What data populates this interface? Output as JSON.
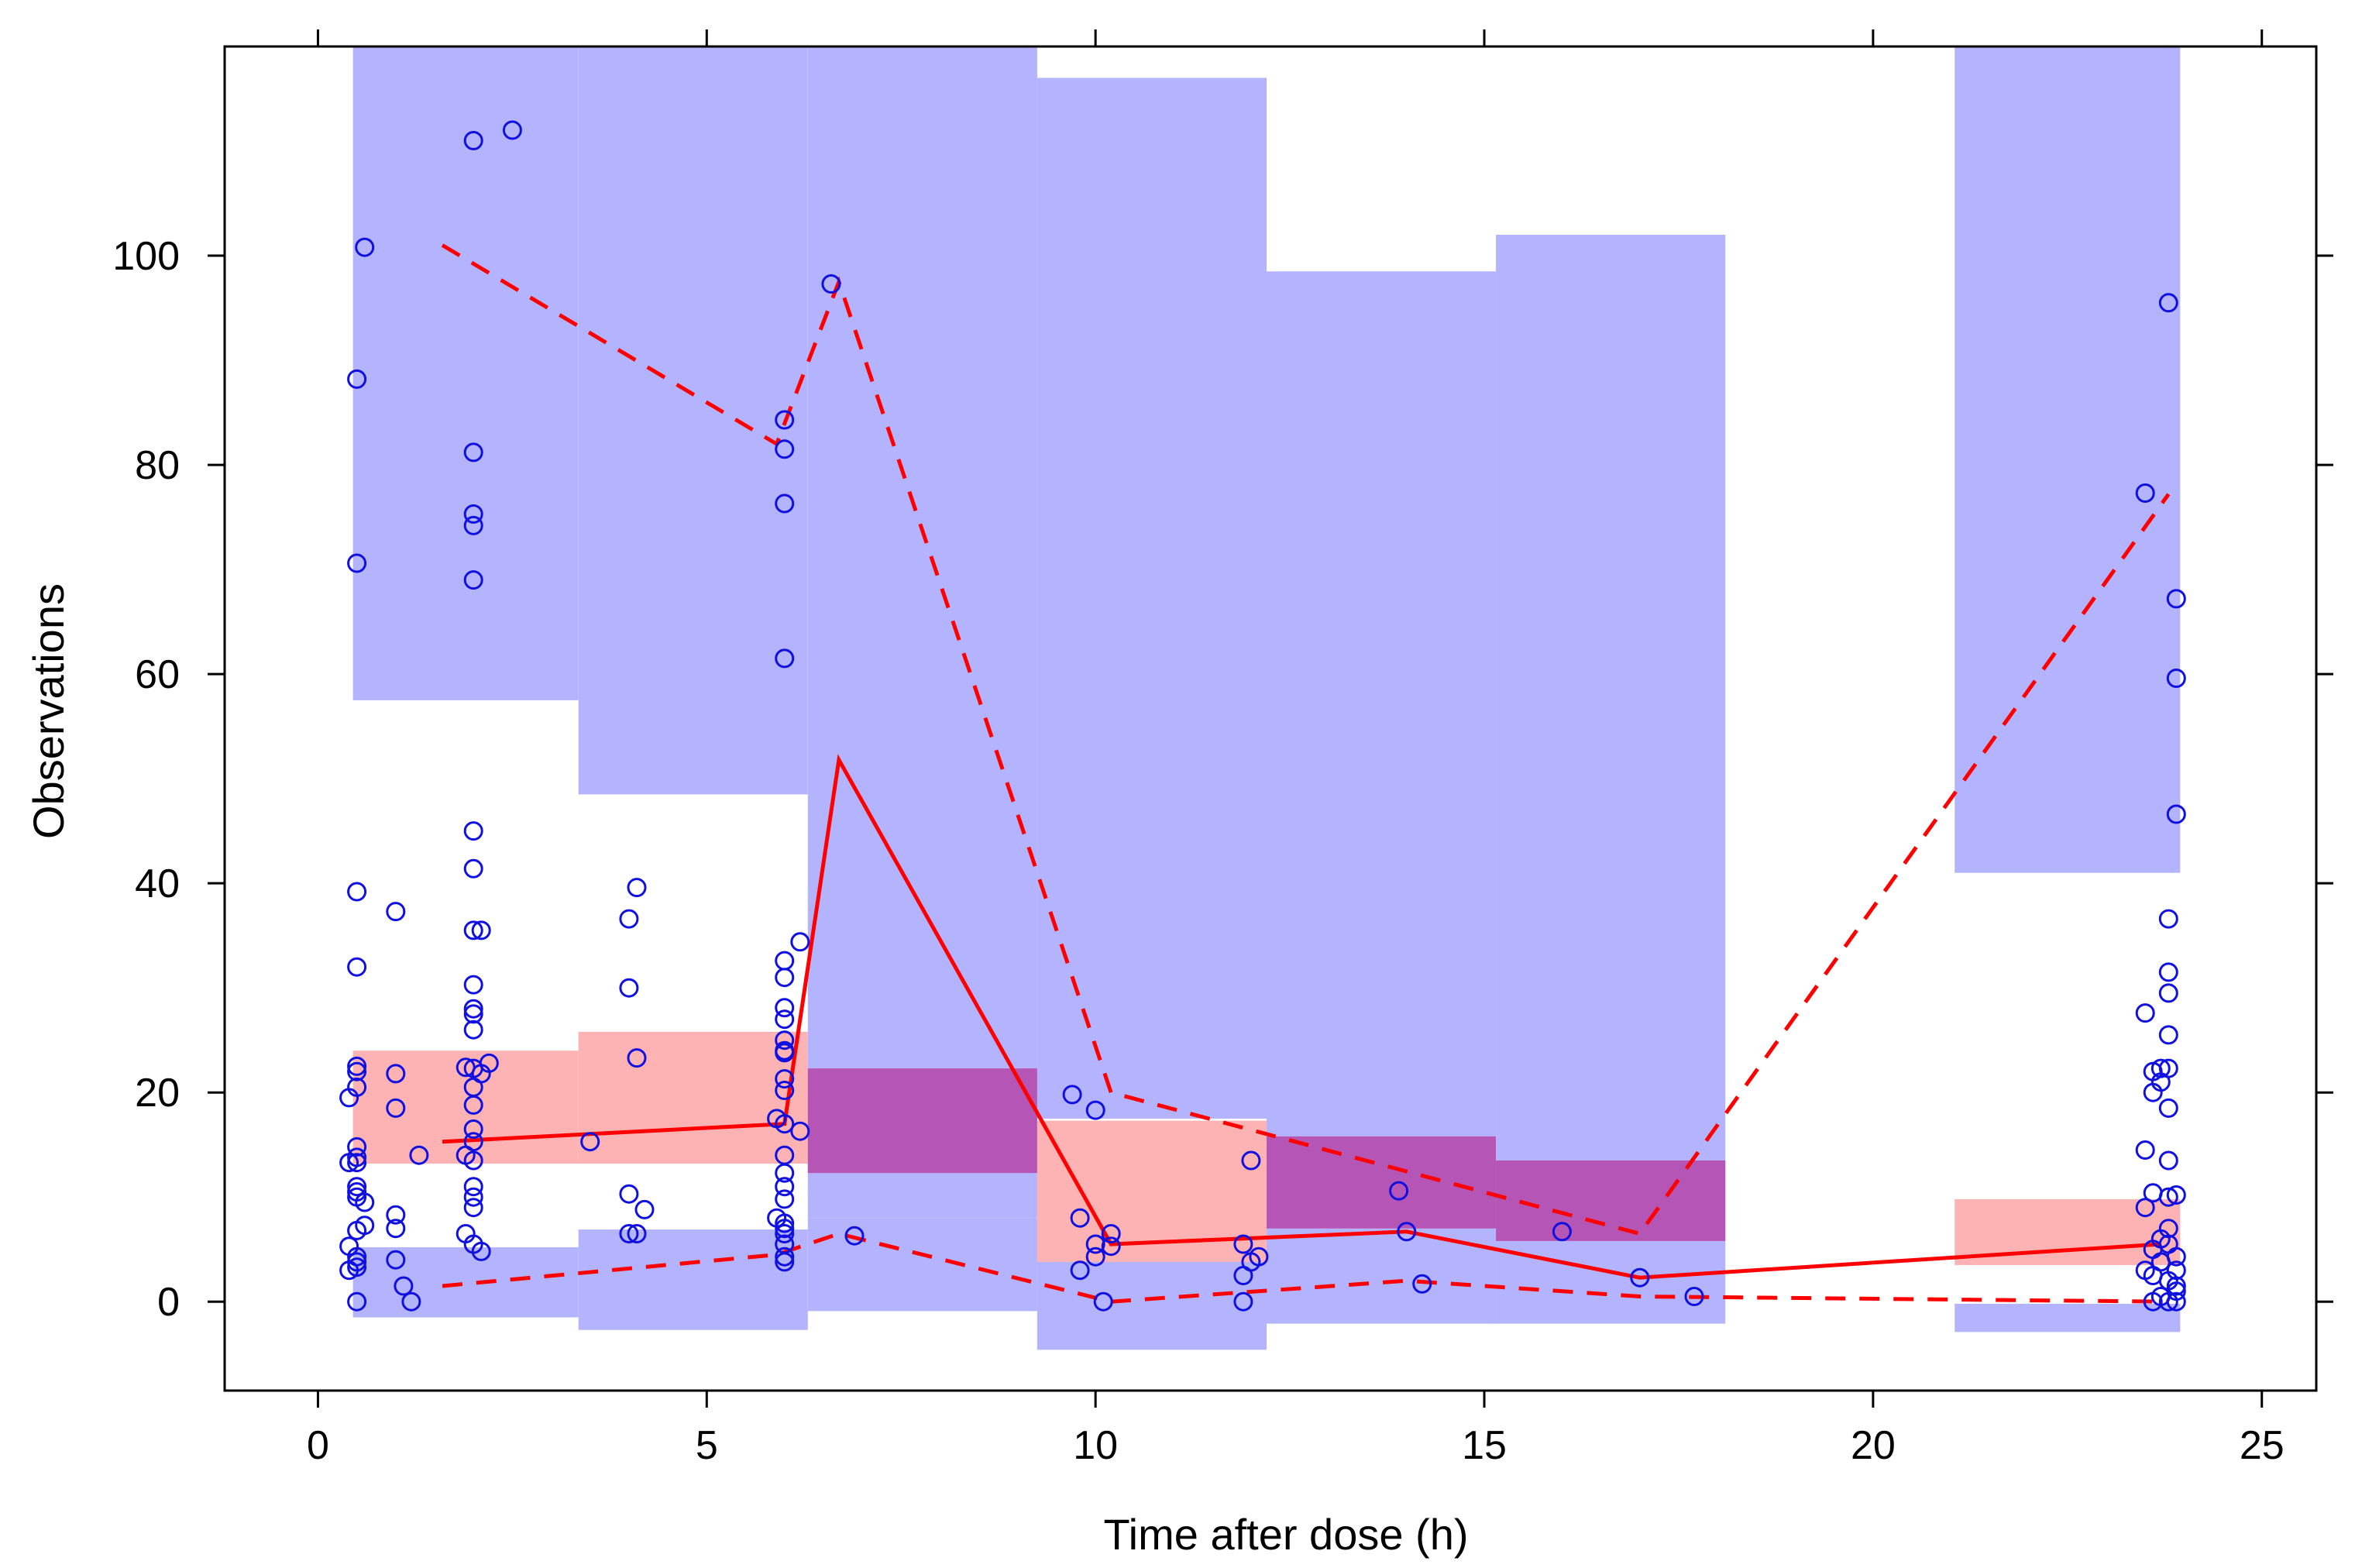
{
  "chart_data": {
    "type": "scatter",
    "title": "",
    "xlabel": "Time after dose (h)",
    "ylabel": "Observations",
    "xlim": [
      -1.2,
      25.7
    ],
    "ylim": [
      -8.5,
      120
    ],
    "xticks": [
      0,
      5,
      10,
      15,
      20,
      25
    ],
    "yticks": [
      0,
      20,
      40,
      60,
      80,
      100
    ],
    "xtick_labels": [
      "0",
      "5",
      "10",
      "15",
      "20",
      "25"
    ],
    "ytick_labels": [
      "0",
      "20",
      "40",
      "60",
      "80",
      "100"
    ],
    "grid": false,
    "legend": "none",
    "colors": {
      "outer_pi": "#b3b3fe",
      "median_pi": "#fdb3b3",
      "overlap": "#e07fb8",
      "overlap_median": "#b555b5",
      "points": "#1010e0",
      "lines": "#ff0000"
    },
    "bins": [
      {
        "x0": 0.45,
        "x1": 3.35,
        "upper_ci": [
          57.5,
          120
        ],
        "median_ci": [
          13.2,
          24.0
        ],
        "lower_ci": [
          -1.5,
          5.2
        ]
      },
      {
        "x0": 3.35,
        "x1": 6.3,
        "upper_ci": [
          48.5,
          120
        ],
        "median_ci": [
          13.2,
          25.8
        ],
        "lower_ci": [
          -2.7,
          6.9
        ]
      },
      {
        "x0": 6.3,
        "x1": 9.25,
        "upper_ci": [
          8.0,
          120
        ],
        "median_ci": [
          12.3,
          22.3
        ],
        "lower_ci": [
          -0.9,
          8.0
        ]
      },
      {
        "x0": 9.25,
        "x1": 12.2,
        "upper_ci": [
          17.5,
          117
        ],
        "median_ci": [
          3.8,
          17.3
        ],
        "lower_ci": [
          -4.6,
          4.0
        ]
      },
      {
        "x0": 12.2,
        "x1": 15.15,
        "upper_ci": [
          1.5,
          98.5
        ],
        "median_ci": [
          7.0,
          15.8
        ],
        "lower_ci": [
          -2.1,
          1.5
        ]
      },
      {
        "x0": 15.15,
        "x1": 18.1,
        "upper_ci": [
          0.5,
          102
        ],
        "median_ci": [
          5.8,
          13.5
        ],
        "lower_ci": [
          -2.1,
          0.5
        ]
      },
      {
        "x0": 21.05,
        "x1": 23.95,
        "upper_ci": [
          41.0,
          120
        ],
        "median_ci": [
          3.5,
          9.8
        ],
        "lower_ci": [
          -2.9,
          -0.2
        ]
      }
    ],
    "series": [
      {
        "name": "Observed median",
        "style": "solid",
        "x": [
          1.6,
          6.0,
          6.7,
          10.2,
          14.0,
          17.0,
          23.7
        ],
        "y": [
          15.3,
          17.0,
          51.8,
          5.5,
          6.7,
          2.3,
          5.5
        ]
      },
      {
        "name": "Observed 95th percentile",
        "style": "dashed",
        "x": [
          1.6,
          5.9,
          6.7,
          10.2,
          17.0,
          23.8
        ],
        "y": [
          101.0,
          82.0,
          97.5,
          20.0,
          6.5,
          77.2
        ]
      },
      {
        "name": "Observed 5th percentile",
        "style": "dashed",
        "x": [
          1.6,
          5.9,
          6.7,
          10.2,
          14.0,
          17.0,
          23.8
        ],
        "y": [
          1.5,
          4.5,
          6.5,
          0.0,
          2.0,
          0.5,
          0.0
        ]
      }
    ],
    "points": [
      [
        0.5,
        88.2
      ],
      [
        0.5,
        70.6
      ],
      [
        0.6,
        100.8
      ],
      [
        0.5,
        39.2
      ],
      [
        0.5,
        32.0
      ],
      [
        0.5,
        22.5
      ],
      [
        0.5,
        22.0
      ],
      [
        0.4,
        19.5
      ],
      [
        0.5,
        20.5
      ],
      [
        0.5,
        14.8
      ],
      [
        0.5,
        13.8
      ],
      [
        0.4,
        13.3
      ],
      [
        0.5,
        13.3
      ],
      [
        0.5,
        11.0
      ],
      [
        0.5,
        10.5
      ],
      [
        0.5,
        10.0
      ],
      [
        0.6,
        9.5
      ],
      [
        0.5,
        6.8
      ],
      [
        0.6,
        7.3
      ],
      [
        0.4,
        5.3
      ],
      [
        0.5,
        4.3
      ],
      [
        0.5,
        3.8
      ],
      [
        0.4,
        3.0
      ],
      [
        0.5,
        3.3
      ],
      [
        0.5,
        0.0
      ],
      [
        1.0,
        37.3
      ],
      [
        1.0,
        21.8
      ],
      [
        1.0,
        18.5
      ],
      [
        1.0,
        8.3
      ],
      [
        1.0,
        7.0
      ],
      [
        1.0,
        4.0
      ],
      [
        1.1,
        1.5
      ],
      [
        1.2,
        0.0
      ],
      [
        1.3,
        14.0
      ],
      [
        2.0,
        111.0
      ],
      [
        2.0,
        81.2
      ],
      [
        2.0,
        75.3
      ],
      [
        2.0,
        74.2
      ],
      [
        2.0,
        69.0
      ],
      [
        2.0,
        45.0
      ],
      [
        2.0,
        41.4
      ],
      [
        2.1,
        35.5
      ],
      [
        2.0,
        35.5
      ],
      [
        2.0,
        30.3
      ],
      [
        2.0,
        28.0
      ],
      [
        2.0,
        27.5
      ],
      [
        2.0,
        26.0
      ],
      [
        1.9,
        22.4
      ],
      [
        2.0,
        22.3
      ],
      [
        2.1,
        21.8
      ],
      [
        2.0,
        20.5
      ],
      [
        2.2,
        22.8
      ],
      [
        2.0,
        18.8
      ],
      [
        2.0,
        16.5
      ],
      [
        2.0,
        15.3
      ],
      [
        1.9,
        14.0
      ],
      [
        2.0,
        13.5
      ],
      [
        2.0,
        11.0
      ],
      [
        2.0,
        10.0
      ],
      [
        2.0,
        9.0
      ],
      [
        1.9,
        6.5
      ],
      [
        2.0,
        5.5
      ],
      [
        2.1,
        4.8
      ],
      [
        2.5,
        112.0
      ],
      [
        3.5,
        15.3
      ],
      [
        4.0,
        36.6
      ],
      [
        4.0,
        30.0
      ],
      [
        4.1,
        39.6
      ],
      [
        4.1,
        23.3
      ],
      [
        4.0,
        10.3
      ],
      [
        4.0,
        6.5
      ],
      [
        4.1,
        6.5
      ],
      [
        4.2,
        8.8
      ],
      [
        6.0,
        84.3
      ],
      [
        6.0,
        81.5
      ],
      [
        6.0,
        76.3
      ],
      [
        6.0,
        61.5
      ],
      [
        6.2,
        34.4
      ],
      [
        6.0,
        32.6
      ],
      [
        6.0,
        31.0
      ],
      [
        6.0,
        28.1
      ],
      [
        6.0,
        27.0
      ],
      [
        6.0,
        25.0
      ],
      [
        6.0,
        24.0
      ],
      [
        6.0,
        23.8
      ],
      [
        6.0,
        21.3
      ],
      [
        6.0,
        20.2
      ],
      [
        5.9,
        17.5
      ],
      [
        6.0,
        17.0
      ],
      [
        6.2,
        16.3
      ],
      [
        6.0,
        14.0
      ],
      [
        6.0,
        12.3
      ],
      [
        6.0,
        11.0
      ],
      [
        6.0,
        9.8
      ],
      [
        5.9,
        8.0
      ],
      [
        6.0,
        7.5
      ],
      [
        6.0,
        7.0
      ],
      [
        6.0,
        6.5
      ],
      [
        6.0,
        5.5
      ],
      [
        6.0,
        4.3
      ],
      [
        6.0,
        3.8
      ],
      [
        6.6,
        97.3
      ],
      [
        6.9,
        6.3
      ],
      [
        9.7,
        19.8
      ],
      [
        9.8,
        8.0
      ],
      [
        9.8,
        3.0
      ],
      [
        10.0,
        18.3
      ],
      [
        10.0,
        5.5
      ],
      [
        10.0,
        4.3
      ],
      [
        10.1,
        0.0
      ],
      [
        10.2,
        6.5
      ],
      [
        10.2,
        5.3
      ],
      [
        11.9,
        5.5
      ],
      [
        11.9,
        2.5
      ],
      [
        11.9,
        0.0
      ],
      [
        12.0,
        3.8
      ],
      [
        12.1,
        4.3
      ],
      [
        12.0,
        13.5
      ],
      [
        13.9,
        10.6
      ],
      [
        14.0,
        6.7
      ],
      [
        14.2,
        1.7
      ],
      [
        16.0,
        6.7
      ],
      [
        17.0,
        2.3
      ],
      [
        17.7,
        0.5
      ],
      [
        23.5,
        77.3
      ],
      [
        23.8,
        95.5
      ],
      [
        23.9,
        67.2
      ],
      [
        23.9,
        59.6
      ],
      [
        23.9,
        46.6
      ],
      [
        23.8,
        36.6
      ],
      [
        23.8,
        31.5
      ],
      [
        23.8,
        29.5
      ],
      [
        23.5,
        27.6
      ],
      [
        23.8,
        25.5
      ],
      [
        23.7,
        22.3
      ],
      [
        23.6,
        22.0
      ],
      [
        23.8,
        22.3
      ],
      [
        23.7,
        21.0
      ],
      [
        23.6,
        20.0
      ],
      [
        23.8,
        18.5
      ],
      [
        23.5,
        14.5
      ],
      [
        23.8,
        13.5
      ],
      [
        23.6,
        10.4
      ],
      [
        23.8,
        10.0
      ],
      [
        23.9,
        10.2
      ],
      [
        23.5,
        9.0
      ],
      [
        23.8,
        7.0
      ],
      [
        23.7,
        6.0
      ],
      [
        23.8,
        5.5
      ],
      [
        23.6,
        5.0
      ],
      [
        23.9,
        4.3
      ],
      [
        23.7,
        3.8
      ],
      [
        23.9,
        3.0
      ],
      [
        23.5,
        3.0
      ],
      [
        23.6,
        2.5
      ],
      [
        23.8,
        2.0
      ],
      [
        23.9,
        1.5
      ],
      [
        23.9,
        1.0
      ],
      [
        23.7,
        0.5
      ],
      [
        23.8,
        0.0
      ],
      [
        23.9,
        0.0
      ],
      [
        23.6,
        0.0
      ]
    ]
  }
}
